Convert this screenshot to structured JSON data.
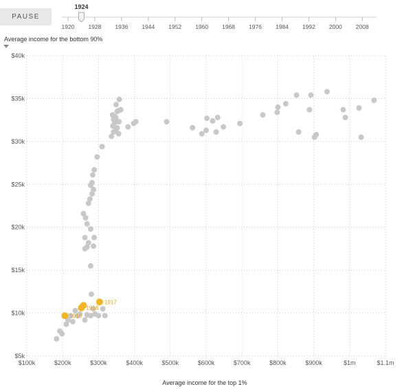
{
  "controls": {
    "pause_label": "PAUSE",
    "current_year": "1924",
    "timeline": {
      "min": 1920,
      "max": 2010,
      "ticks": [
        "1920",
        "1928",
        "1936",
        "1944",
        "1952",
        "1960",
        "1968",
        "1976",
        "1984",
        "1992",
        "2000",
        "2008"
      ],
      "value": 1924
    }
  },
  "chart_data": {
    "type": "scatter",
    "title": "",
    "xlabel": "Average income for the top 1%",
    "ylabel": "Average income for the bottom 90%",
    "xlim": [
      100000,
      1100000
    ],
    "ylim": [
      5000,
      40000
    ],
    "x_ticks": [
      100000,
      200000,
      300000,
      400000,
      500000,
      600000,
      700000,
      800000,
      900000,
      1000000,
      1100000
    ],
    "x_tick_labels": [
      "$100k",
      "$200k",
      "$300k",
      "$400k",
      "$500k",
      "$600k",
      "$700k",
      "$800k",
      "$900k",
      "$1m",
      "$1.1m"
    ],
    "y_ticks": [
      5000,
      10000,
      15000,
      20000,
      25000,
      30000,
      35000,
      40000
    ],
    "y_tick_labels": [
      "$5k",
      "$10k",
      "$15k",
      "$20k",
      "$25k",
      "$30k",
      "$35k",
      "$40k"
    ],
    "grid": true,
    "colors": {
      "past": "#c8c8c8",
      "highlight": "#f0b429",
      "highlight_label": "#e8a21a",
      "grid": "#cccccc"
    },
    "past_points": [
      {
        "x": 183000,
        "y": 7000
      },
      {
        "x": 192000,
        "y": 7900
      },
      {
        "x": 198000,
        "y": 7600
      },
      {
        "x": 210000,
        "y": 8700
      },
      {
        "x": 215000,
        "y": 9200
      },
      {
        "x": 222000,
        "y": 9700
      },
      {
        "x": 228000,
        "y": 9000
      },
      {
        "x": 235000,
        "y": 10300
      },
      {
        "x": 242000,
        "y": 9700
      },
      {
        "x": 248000,
        "y": 9900
      },
      {
        "x": 262000,
        "y": 9200
      },
      {
        "x": 268000,
        "y": 9800
      },
      {
        "x": 278000,
        "y": 9700
      },
      {
        "x": 285000,
        "y": 10500
      },
      {
        "x": 290000,
        "y": 9900
      },
      {
        "x": 300000,
        "y": 9700
      },
      {
        "x": 312000,
        "y": 10500
      },
      {
        "x": 318000,
        "y": 9700
      },
      {
        "x": 280000,
        "y": 12200
      },
      {
        "x": 278000,
        "y": 15500
      },
      {
        "x": 262000,
        "y": 17500
      },
      {
        "x": 268000,
        "y": 17700
      },
      {
        "x": 272000,
        "y": 18200
      },
      {
        "x": 286000,
        "y": 17800
      },
      {
        "x": 262000,
        "y": 18800
      },
      {
        "x": 288000,
        "y": 18800
      },
      {
        "x": 278000,
        "y": 19800
      },
      {
        "x": 258000,
        "y": 21600
      },
      {
        "x": 264000,
        "y": 21100
      },
      {
        "x": 268000,
        "y": 20400
      },
      {
        "x": 272000,
        "y": 22800
      },
      {
        "x": 276000,
        "y": 23300
      },
      {
        "x": 282000,
        "y": 23900
      },
      {
        "x": 286000,
        "y": 24400
      },
      {
        "x": 278000,
        "y": 24900
      },
      {
        "x": 282000,
        "y": 25200
      },
      {
        "x": 284000,
        "y": 26100
      },
      {
        "x": 288000,
        "y": 26700
      },
      {
        "x": 296000,
        "y": 28200
      },
      {
        "x": 310000,
        "y": 29400
      },
      {
        "x": 336000,
        "y": 30600
      },
      {
        "x": 342000,
        "y": 31100
      },
      {
        "x": 348000,
        "y": 31300
      },
      {
        "x": 356000,
        "y": 30900
      },
      {
        "x": 352000,
        "y": 31600
      },
      {
        "x": 340000,
        "y": 31800
      },
      {
        "x": 345000,
        "y": 32200
      },
      {
        "x": 350000,
        "y": 32400
      },
      {
        "x": 357000,
        "y": 32300
      },
      {
        "x": 342000,
        "y": 32600
      },
      {
        "x": 348000,
        "y": 32800
      },
      {
        "x": 339000,
        "y": 33100
      },
      {
        "x": 346000,
        "y": 32900
      },
      {
        "x": 352000,
        "y": 33500
      },
      {
        "x": 356000,
        "y": 33600
      },
      {
        "x": 362000,
        "y": 33700
      },
      {
        "x": 349000,
        "y": 34300
      },
      {
        "x": 358000,
        "y": 34900
      },
      {
        "x": 382000,
        "y": 31700
      },
      {
        "x": 398000,
        "y": 32100
      },
      {
        "x": 404000,
        "y": 32300
      },
      {
        "x": 490000,
        "y": 32300
      },
      {
        "x": 562000,
        "y": 31600
      },
      {
        "x": 588000,
        "y": 30900
      },
      {
        "x": 600000,
        "y": 31300
      },
      {
        "x": 602000,
        "y": 32700
      },
      {
        "x": 618000,
        "y": 32400
      },
      {
        "x": 628000,
        "y": 31100
      },
      {
        "x": 632000,
        "y": 32800
      },
      {
        "x": 648000,
        "y": 31700
      },
      {
        "x": 694000,
        "y": 32100
      },
      {
        "x": 758000,
        "y": 33100
      },
      {
        "x": 798000,
        "y": 33400
      },
      {
        "x": 800000,
        "y": 34000
      },
      {
        "x": 822000,
        "y": 34400
      },
      {
        "x": 852000,
        "y": 35400
      },
      {
        "x": 858000,
        "y": 31100
      },
      {
        "x": 888000,
        "y": 33700
      },
      {
        "x": 892000,
        "y": 35400
      },
      {
        "x": 902000,
        "y": 30500
      },
      {
        "x": 907000,
        "y": 30800
      },
      {
        "x": 937000,
        "y": 35800
      },
      {
        "x": 982000,
        "y": 33700
      },
      {
        "x": 988000,
        "y": 32800
      },
      {
        "x": 1026000,
        "y": 33900
      },
      {
        "x": 1032000,
        "y": 30500
      },
      {
        "x": 1068000,
        "y": 34800
      }
    ],
    "highlight_points": [
      {
        "year": "1916",
        "x": 206000,
        "y": 9700
      },
      {
        "year": "1918",
        "x": 252000,
        "y": 10600
      },
      {
        "x": 258000,
        "y": 10900
      },
      {
        "year": "1917",
        "x": 303000,
        "y": 11300
      }
    ]
  }
}
